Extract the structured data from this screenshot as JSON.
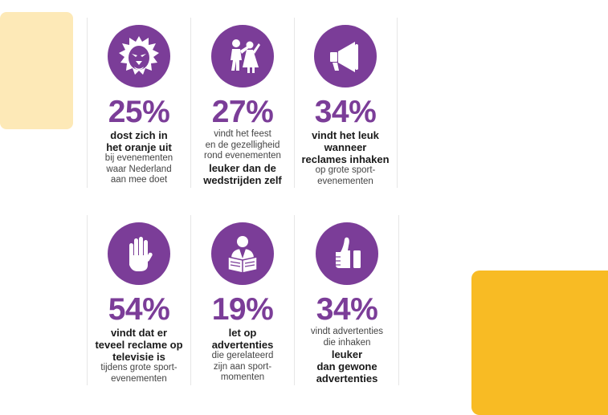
{
  "colors": {
    "accent": "#7b3d98",
    "cream": "#fde9b7",
    "yellow": "#f8bb24"
  },
  "stats": [
    {
      "icon": "lion-icon",
      "percent": "25%",
      "bold": [
        "dost zich in",
        "het oranje uit"
      ],
      "normal": [
        "bij evenementen",
        "waar Nederland",
        "aan mee doet"
      ]
    },
    {
      "icon": "dancing-couple-icon",
      "percent": "27%",
      "normal": [
        "vindt het feest",
        "en de gezelligheid",
        "rond evenementen"
      ],
      "bold": [
        "leuker dan de",
        "wedstrijden zelf"
      ]
    },
    {
      "icon": "megaphone-icon",
      "percent": "34%",
      "bold": [
        "vindt het leuk",
        "wanneer",
        "reclames inhaken"
      ],
      "normal": [
        "op grote sport-",
        "evenementen"
      ]
    },
    {
      "icon": "raised-hand-icon",
      "percent": "54%",
      "bold": [
        "vindt dat er",
        "teveel reclame op",
        "televisie is"
      ],
      "normal": [
        "tijdens grote sport-",
        "evenementen"
      ]
    },
    {
      "icon": "newspaper-reader-icon",
      "percent": "19%",
      "bold": [
        "let op",
        "advertenties"
      ],
      "normal": [
        "die gerelateerd",
        "zijn aan sport-",
        "momenten"
      ]
    },
    {
      "icon": "thumbs-up-icon",
      "percent": "34%",
      "normal": [
        "vindt advertenties",
        "die inhaken"
      ],
      "bold": [
        "leuker",
        "dan gewone",
        "advertenties"
      ]
    }
  ]
}
